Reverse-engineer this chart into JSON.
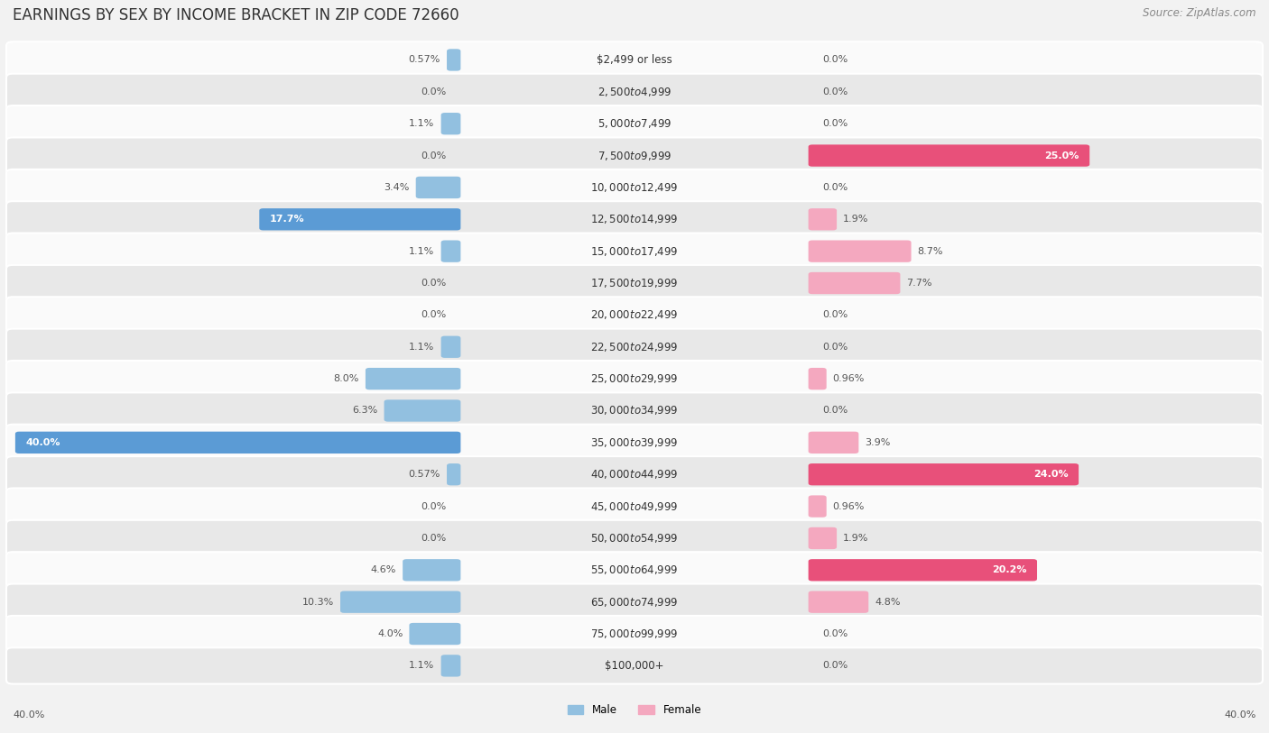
{
  "title": "EARNINGS BY SEX BY INCOME BRACKET IN ZIP CODE 72660",
  "source": "Source: ZipAtlas.com",
  "categories": [
    "$2,499 or less",
    "$2,500 to $4,999",
    "$5,000 to $7,499",
    "$7,500 to $9,999",
    "$10,000 to $12,499",
    "$12,500 to $14,999",
    "$15,000 to $17,499",
    "$17,500 to $19,999",
    "$20,000 to $22,499",
    "$22,500 to $24,999",
    "$25,000 to $29,999",
    "$30,000 to $34,999",
    "$35,000 to $39,999",
    "$40,000 to $44,999",
    "$45,000 to $49,999",
    "$50,000 to $54,999",
    "$55,000 to $64,999",
    "$65,000 to $74,999",
    "$75,000 to $99,999",
    "$100,000+"
  ],
  "male_values": [
    0.57,
    0.0,
    1.1,
    0.0,
    3.4,
    17.7,
    1.1,
    0.0,
    0.0,
    1.1,
    8.0,
    6.3,
    40.0,
    0.57,
    0.0,
    0.0,
    4.6,
    10.3,
    4.0,
    1.1
  ],
  "female_values": [
    0.0,
    0.0,
    0.0,
    25.0,
    0.0,
    1.9,
    8.7,
    7.7,
    0.0,
    0.0,
    0.96,
    0.0,
    3.9,
    24.0,
    0.96,
    1.9,
    20.2,
    4.8,
    0.0,
    0.0
  ],
  "male_color": "#92c0e0",
  "male_color_highlight": "#5b9bd5",
  "female_color": "#f4a8bf",
  "female_color_highlight": "#e8507a",
  "bg_color": "#f2f2f2",
  "row_bg_even": "#fafafa",
  "row_bg_odd": "#e8e8e8",
  "max_val": 40.0,
  "title_fontsize": 12,
  "label_fontsize": 8.5,
  "value_fontsize": 8.0,
  "source_fontsize": 8.5
}
